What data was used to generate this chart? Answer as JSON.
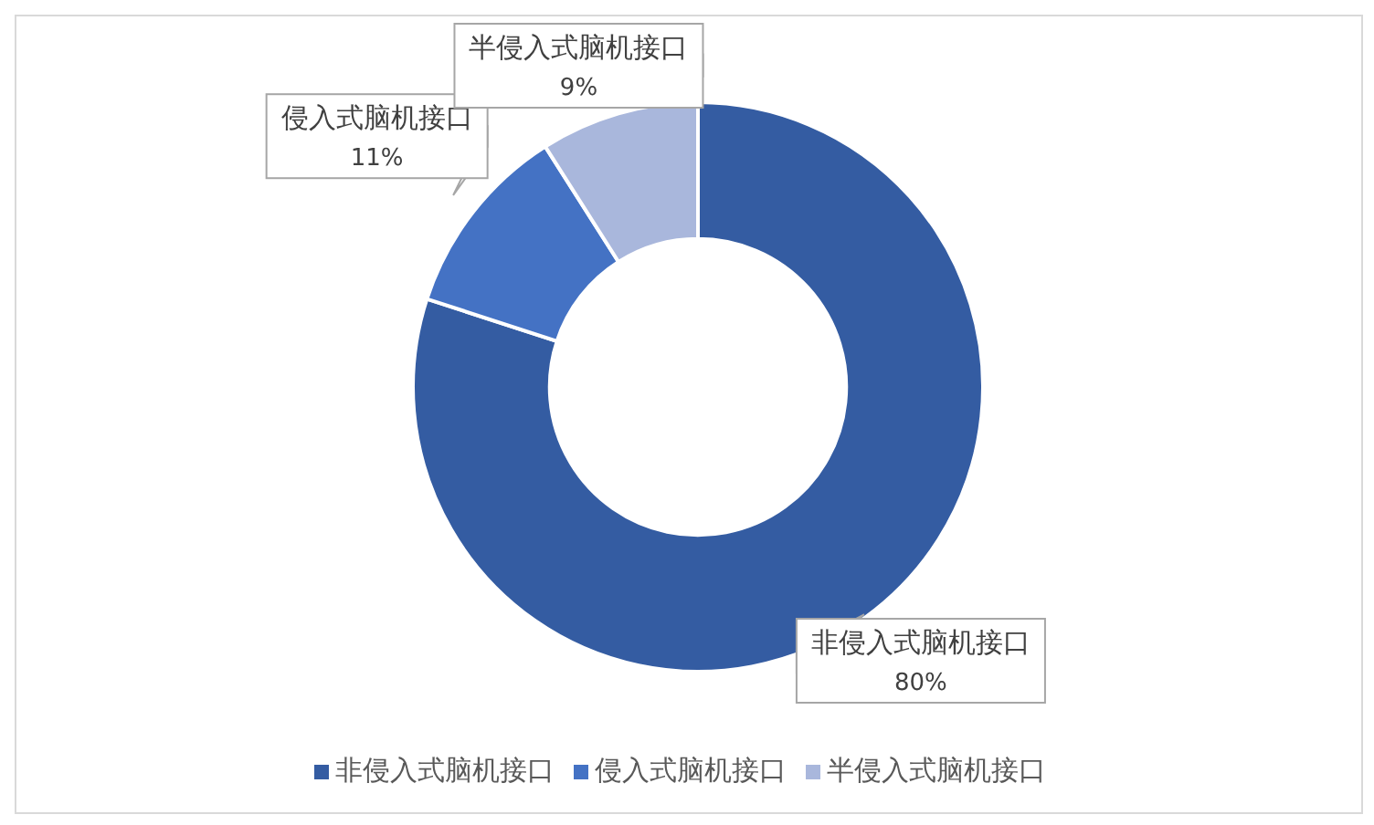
{
  "chart_data": {
    "type": "donut",
    "categories": [
      "非侵入式脑机接口",
      "侵入式脑机接口",
      "半侵入式脑机接口"
    ],
    "values": [
      80,
      11,
      9
    ],
    "colors": [
      "#345ca2",
      "#4472c4",
      "#a9b7dc"
    ],
    "value_labels": [
      "80%",
      "11%",
      "9%"
    ],
    "legend": "bottom"
  }
}
